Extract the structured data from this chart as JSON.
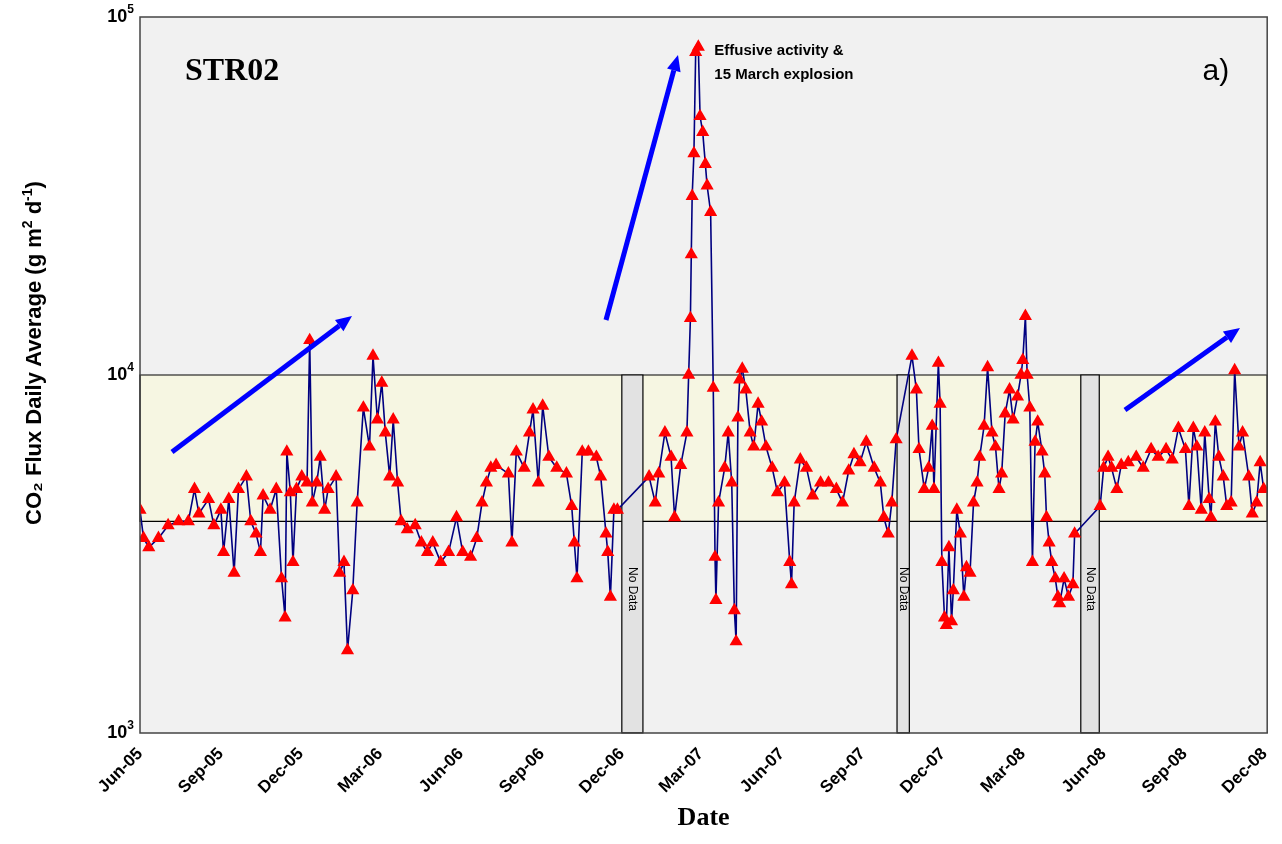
{
  "chart_data": {
    "type": "line",
    "title": "STR02",
    "xlabel": "Date",
    "ylabel": "CO₂ Flux Daily Average (g m$^{2}$ d$^{-1}$)",
    "log": "y",
    "grid": false,
    "legend": false,
    "marker": "triangle",
    "line_style": "solid",
    "xlim": [
      "2005-06-01",
      "2008-12-04"
    ],
    "xticks": [
      {
        "value": "2005-06-01",
        "label": "Jun-05"
      },
      {
        "value": "2005-09-01",
        "label": "Sep-05"
      },
      {
        "value": "2005-12-01",
        "label": "Dec-05"
      },
      {
        "value": "2006-03-01",
        "label": "Mar-06"
      },
      {
        "value": "2006-06-01",
        "label": "Jun-06"
      },
      {
        "value": "2006-09-01",
        "label": "Sep-06"
      },
      {
        "value": "2006-12-01",
        "label": "Dec-06"
      },
      {
        "value": "2007-03-01",
        "label": "Mar-07"
      },
      {
        "value": "2007-06-01",
        "label": "Jun-07"
      },
      {
        "value": "2007-09-01",
        "label": "Sep-07"
      },
      {
        "value": "2007-12-01",
        "label": "Dec-07"
      },
      {
        "value": "2008-03-01",
        "label": "Mar-08"
      },
      {
        "value": "2008-06-01",
        "label": "Jun-08"
      },
      {
        "value": "2008-09-01",
        "label": "Sep-08"
      },
      {
        "value": "2008-12-01",
        "label": "Dec-08"
      }
    ],
    "ylim": [
      1000,
      100000
    ],
    "yticks": [
      {
        "value": 1000,
        "label": "10$^{3}$"
      },
      {
        "value": 10000,
        "label": "10$^{4}$"
      },
      {
        "value": 100000,
        "label": "10$^{5}$"
      }
    ],
    "bands": [
      {
        "axis": "y",
        "from": 3900,
        "to": 10000,
        "color": "#f6f6e2"
      },
      {
        "axis": "x",
        "from": "2006-12-01",
        "to": "2006-12-25",
        "label": "No Data",
        "color": "#e2e2e2"
      },
      {
        "axis": "x",
        "from": "2007-10-10",
        "to": "2007-10-24",
        "label": "No Data",
        "color": "#e2e2e2"
      },
      {
        "axis": "x",
        "from": "2008-05-06",
        "to": "2008-05-27",
        "label": "No Data",
        "color": "#e2e2e2"
      }
    ],
    "annotations": [
      "a)",
      {
        "text": "Effusive activity &\n15 March explosion",
        "x": "2007-02-26",
        "y": 82500
      }
    ],
    "series": [
      {
        "color": "#ff0000",
        "x": [
          "2005-06-01",
          "2005-06-05",
          "2005-06-11",
          "2005-06-22",
          "2005-07-03",
          "2005-07-15",
          "2005-07-26",
          "2005-08-02",
          "2005-08-07",
          "2005-08-18",
          "2005-08-24",
          "2005-09-01",
          "2005-09-04",
          "2005-09-10",
          "2005-09-16",
          "2005-09-21",
          "2005-09-30",
          "2005-10-05",
          "2005-10-11",
          "2005-10-16",
          "2005-10-19",
          "2005-10-27",
          "2005-11-03",
          "2005-11-09",
          "2005-11-13",
          "2005-11-15",
          "2005-11-19",
          "2005-11-22",
          "2005-11-26",
          "2005-12-02",
          "2005-12-08",
          "2005-12-11",
          "2005-12-14",
          "2005-12-19",
          "2005-12-23",
          "2005-12-28",
          "2006-01-01",
          "2006-01-10",
          "2006-01-14",
          "2006-01-19",
          "2006-01-23",
          "2006-01-29",
          "2006-02-03",
          "2006-02-10",
          "2006-02-17",
          "2006-02-21",
          "2006-02-26",
          "2006-03-03",
          "2006-03-07",
          "2006-03-12",
          "2006-03-16",
          "2006-03-21",
          "2006-03-25",
          "2006-04-01",
          "2006-04-10",
          "2006-04-17",
          "2006-04-24",
          "2006-04-30",
          "2006-05-09",
          "2006-05-18",
          "2006-05-27",
          "2006-06-03",
          "2006-06-12",
          "2006-06-19",
          "2006-06-25",
          "2006-06-30",
          "2006-07-05",
          "2006-07-11",
          "2006-07-25",
          "2006-07-29",
          "2006-08-03",
          "2006-08-12",
          "2006-08-18",
          "2006-08-22",
          "2006-08-28",
          "2006-09-02",
          "2006-09-09",
          "2006-09-18",
          "2006-09-29",
          "2006-10-05",
          "2006-10-08",
          "2006-10-11",
          "2006-10-17",
          "2006-10-24",
          "2006-11-02",
          "2006-11-07",
          "2006-11-13",
          "2006-11-15",
          "2006-11-18",
          "2006-11-22",
          "2006-11-26",
          "2007-01-01",
          "2007-01-08",
          "2007-01-12",
          "2007-01-19",
          "2007-01-26",
          "2007-01-30",
          "2007-02-06",
          "2007-02-13",
          "2007-02-15",
          "2007-02-17",
          "2007-02-18",
          "2007-02-19",
          "2007-02-21",
          "2007-02-23",
          "2007-02-26",
          "2007-02-28",
          "2007-03-03",
          "2007-03-06",
          "2007-03-08",
          "2007-03-12",
          "2007-03-15",
          "2007-03-17",
          "2007-03-18",
          "2007-03-21",
          "2007-03-28",
          "2007-04-01",
          "2007-04-05",
          "2007-04-08",
          "2007-04-10",
          "2007-04-12",
          "2007-04-14",
          "2007-04-17",
          "2007-04-21",
          "2007-04-26",
          "2007-04-30",
          "2007-05-05",
          "2007-05-09",
          "2007-05-14",
          "2007-05-21",
          "2007-05-27",
          "2007-06-04",
          "2007-06-10",
          "2007-06-12",
          "2007-06-15",
          "2007-06-22",
          "2007-06-29",
          "2007-07-06",
          "2007-07-15",
          "2007-07-24",
          "2007-08-02",
          "2007-08-09",
          "2007-08-16",
          "2007-08-22",
          "2007-08-29",
          "2007-09-05",
          "2007-09-14",
          "2007-09-21",
          "2007-09-25",
          "2007-09-30",
          "2007-10-04",
          "2007-10-09",
          "2007-10-27",
          "2007-11-01",
          "2007-11-04",
          "2007-11-10",
          "2007-11-15",
          "2007-11-19",
          "2007-11-21",
          "2007-11-26",
          "2007-11-28",
          "2007-11-30",
          "2007-12-03",
          "2007-12-05",
          "2007-12-08",
          "2007-12-11",
          "2007-12-13",
          "2007-12-17",
          "2007-12-21",
          "2007-12-25",
          "2007-12-28",
          "2008-01-01",
          "2008-01-05",
          "2008-01-09",
          "2008-01-12",
          "2008-01-17",
          "2008-01-21",
          "2008-01-26",
          "2008-01-30",
          "2008-02-03",
          "2008-02-06",
          "2008-02-10",
          "2008-02-15",
          "2008-02-19",
          "2008-02-24",
          "2008-02-28",
          "2008-03-01",
          "2008-03-04",
          "2008-03-06",
          "2008-03-09",
          "2008-03-12",
          "2008-03-15",
          "2008-03-18",
          "2008-03-23",
          "2008-03-26",
          "2008-03-28",
          "2008-03-31",
          "2008-04-03",
          "2008-04-07",
          "2008-04-10",
          "2008-04-12",
          "2008-04-17",
          "2008-04-22",
          "2008-04-27",
          "2008-04-29",
          "2008-05-28",
          "2008-06-01",
          "2008-06-06",
          "2008-06-10",
          "2008-06-16",
          "2008-06-21",
          "2008-06-29",
          "2008-07-08",
          "2008-07-16",
          "2008-07-25",
          "2008-08-02",
          "2008-08-11",
          "2008-08-18",
          "2008-08-25",
          "2008-09-02",
          "2008-09-06",
          "2008-09-11",
          "2008-09-15",
          "2008-09-20",
          "2008-09-24",
          "2008-09-29",
          "2008-10-01",
          "2008-10-06",
          "2008-10-10",
          "2008-10-15",
          "2008-10-19",
          "2008-10-24",
          "2008-10-28",
          "2008-11-02",
          "2008-11-06",
          "2008-11-13",
          "2008-11-17",
          "2008-11-22",
          "2008-11-26",
          "2008-11-30"
        ],
        "values": [
          4200,
          3500,
          3300,
          3500,
          3800,
          3900,
          3900,
          4800,
          4100,
          4500,
          3800,
          4200,
          3200,
          4500,
          2800,
          4800,
          5200,
          3900,
          3600,
          3200,
          4600,
          4200,
          4800,
          2700,
          2100,
          6100,
          4700,
          3000,
          4800,
          5200,
          5000,
          12500,
          4400,
          5000,
          5900,
          4200,
          4800,
          5200,
          2800,
          3000,
          1700,
          2500,
          4400,
          8100,
          6300,
          11300,
          7500,
          9500,
          6900,
          5200,
          7500,
          5000,
          3900,
          3700,
          3800,
          3400,
          3200,
          3400,
          3000,
          3200,
          4000,
          3200,
          3100,
          3500,
          4400,
          5000,
          5500,
          5600,
          5300,
          3400,
          6100,
          5500,
          6900,
          8000,
          5000,
          8200,
          5900,
          5500,
          5300,
          4300,
          3400,
          2700,
          6100,
          6100,
          5900,
          5200,
          3600,
          3200,
          2400,
          4200,
          4200,
          5200,
          4400,
          5300,
          6900,
          5900,
          4000,
          5600,
          6900,
          10000,
          14400,
          21700,
          31600,
          41600,
          79800,
          82500,
          52800,
          47700,
          38800,
          33800,
          28500,
          9200,
          3100,
          2350,
          4400,
          5500,
          6900,
          5000,
          2200,
          1800,
          7600,
          9700,
          10400,
          9100,
          6900,
          6300,
          8300,
          7400,
          6300,
          5500,
          4700,
          5000,
          3000,
          2600,
          4400,
          5800,
          5500,
          4600,
          5000,
          5000,
          4800,
          4400,
          5400,
          6000,
          5700,
          6500,
          5500,
          5000,
          4000,
          3600,
          4400,
          6600,
          11300,
          9100,
          6200,
          4800,
          5500,
          7200,
          4800,
          10800,
          8300,
          3000,
          2100,
          2000,
          3300,
          2050,
          2500,
          4200,
          3600,
          2400,
          2900,
          2800,
          4400,
          5000,
          5900,
          7200,
          10500,
          6900,
          6300,
          4800,
          5300,
          7800,
          9100,
          7500,
          8700,
          10000,
          11000,
          14600,
          10000,
          8100,
          3000,
          6500,
          7400,
          6100,
          5300,
          4000,
          3400,
          3000,
          2700,
          2400,
          2300,
          2700,
          2400,
          2600,
          3600,
          4300,
          5500,
          5900,
          5500,
          4800,
          5600,
          5700,
          5900,
          5500,
          6200,
          5900,
          6200,
          5800,
          7100,
          6200,
          4300,
          7100,
          6300,
          4200,
          6900,
          4500,
          4000,
          7400,
          5900,
          5200,
          4300,
          4400,
          10300,
          6300,
          6900,
          5200,
          4100,
          4400,
          5700,
          4800
        ]
      }
    ]
  }
}
